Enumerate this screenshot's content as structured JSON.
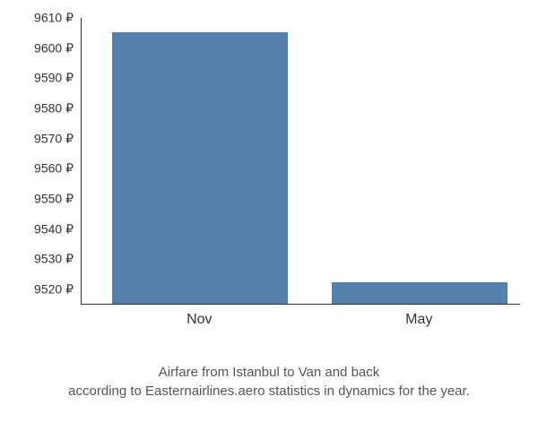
{
  "chart": {
    "type": "bar",
    "background_color": "#ffffff",
    "axis_color": "#333333",
    "label_color": "#333333",
    "caption_color": "#555555",
    "label_fontsize": 14,
    "xlabel_fontsize": 16,
    "caption_fontsize": 15,
    "y_axis": {
      "min": 9515,
      "max": 9610,
      "ticks": [
        9520,
        9530,
        9540,
        9550,
        9560,
        9570,
        9580,
        9590,
        9600,
        9610
      ],
      "tick_suffix": " ₽",
      "display_labels": [
        "9520 ₽",
        "9530 ₽",
        "9540 ₽",
        "9550 ₽",
        "9560 ₽",
        "9570 ₽",
        "9580 ₽",
        "9590 ₽",
        "9600 ₽",
        "9610 ₽"
      ]
    },
    "bars": [
      {
        "label": "Nov",
        "value": 9605,
        "color": "#5481ac",
        "center_pct": 27,
        "width_pct": 40
      },
      {
        "label": "May",
        "value": 9522,
        "color": "#5481ac",
        "center_pct": 77,
        "width_pct": 40
      }
    ],
    "caption_line1": "Airfare from Istanbul to Van and back",
    "caption_line2": "according to Easternairlines.aero statistics in dynamics for the year."
  }
}
